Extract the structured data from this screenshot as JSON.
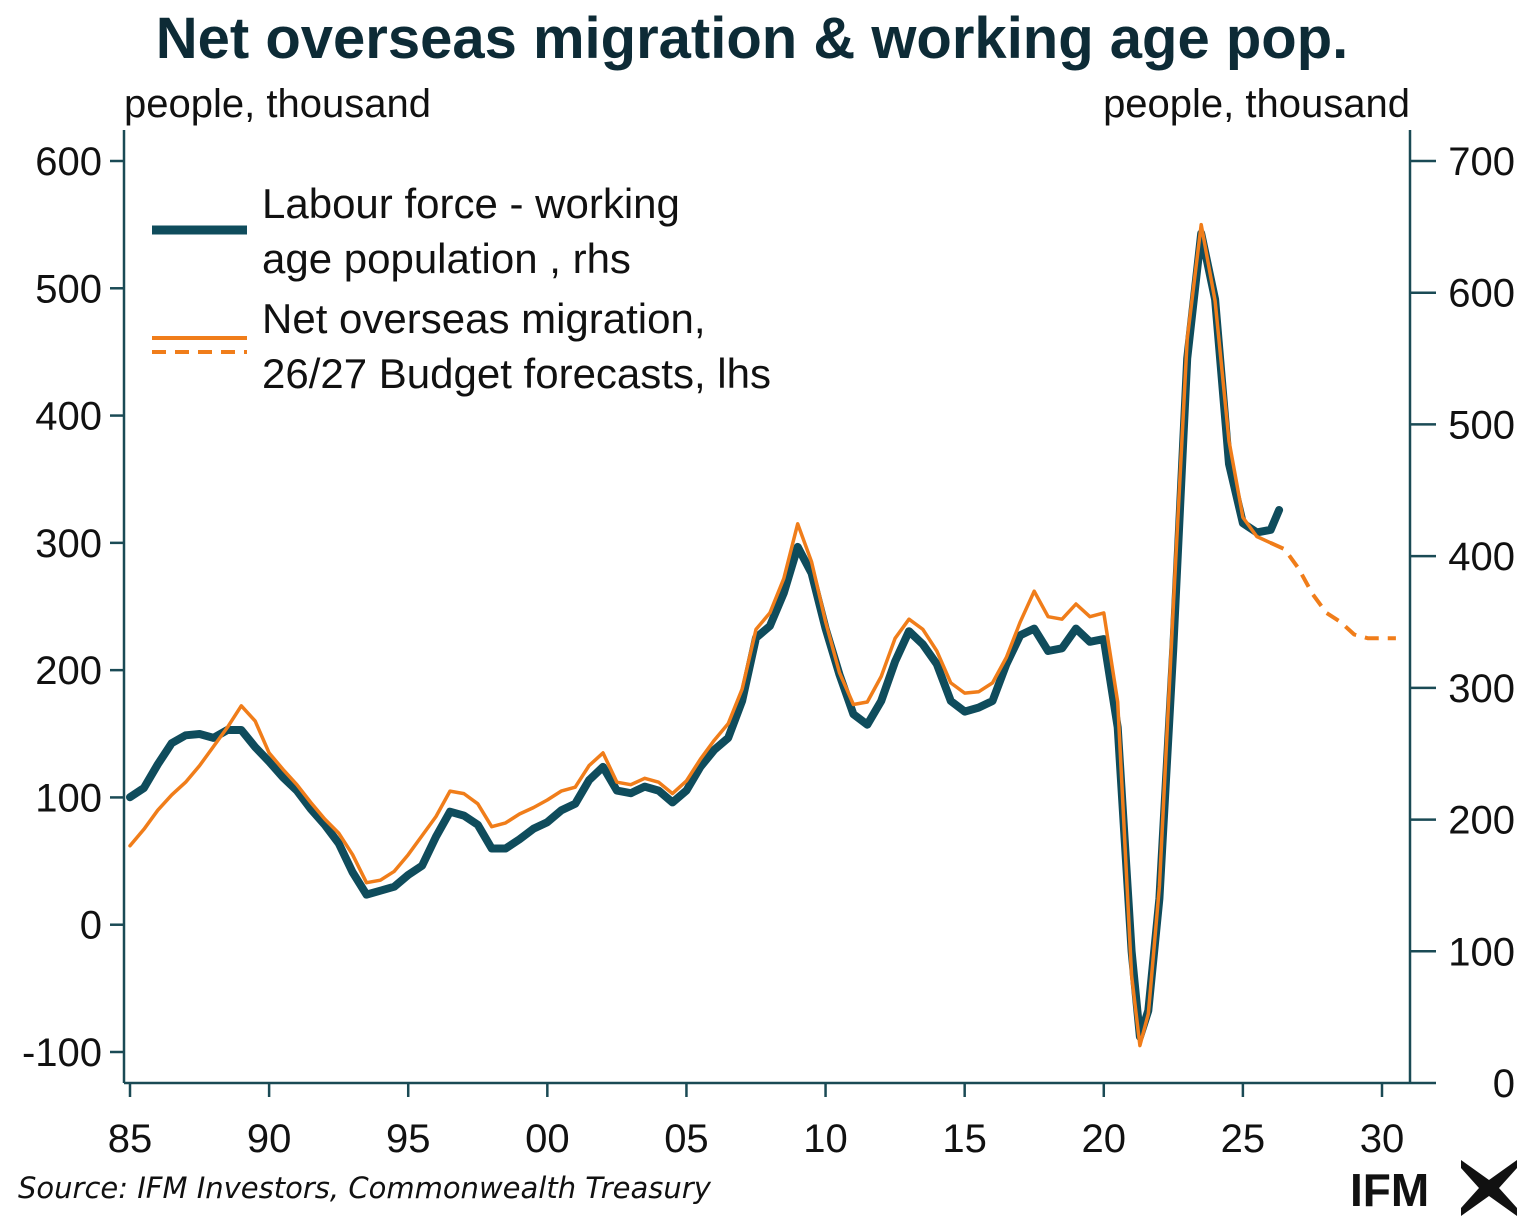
{
  "title": "Net overseas migration & working age pop.",
  "left_unit": "people, thousand",
  "right_unit": "people, thousand",
  "source": "Source: IFM Investors, Commonwealth Treasury",
  "logo_text": "IFM",
  "colors": {
    "labour": "#0f4c5c",
    "nom": "#f07d1a",
    "axis": "#1a4a55",
    "title": "#0d2b36"
  },
  "legend": {
    "labour_line1": "Labour force - working",
    "labour_line2": "age population , rhs",
    "nom_line1": "Net overseas migration,",
    "nom_line2": "26/27 Budget forecasts, lhs"
  },
  "chart_data": {
    "type": "line",
    "title": "Net overseas migration & working age pop.",
    "x_axis": {
      "min": 1985,
      "max": 2030,
      "ticks": [
        1985,
        1990,
        1995,
        2000,
        2005,
        2010,
        2015,
        2020,
        2025,
        2030
      ],
      "tick_labels": [
        "85",
        "90",
        "95",
        "00",
        "05",
        "10",
        "15",
        "20",
        "25",
        "30"
      ]
    },
    "y_left": {
      "label": "people, thousand",
      "min": -100,
      "max": 600,
      "ticks": [
        -100,
        0,
        100,
        200,
        300,
        400,
        500,
        600
      ]
    },
    "y_right": {
      "label": "people, thousand",
      "min": 0,
      "max": 700,
      "ticks": [
        0,
        100,
        200,
        300,
        400,
        500,
        600,
        700
      ]
    },
    "grid": false,
    "legend_position": "top-left",
    "series": [
      {
        "name": "Labour force - working age population , rhs",
        "axis": "right",
        "style": "solid-thick",
        "points": [
          [
            1985.0,
            217
          ],
          [
            1985.5,
            224
          ],
          [
            1986.0,
            242
          ],
          [
            1986.5,
            258
          ],
          [
            1987.0,
            264
          ],
          [
            1987.5,
            265
          ],
          [
            1988.0,
            262
          ],
          [
            1988.5,
            268
          ],
          [
            1989.0,
            268
          ],
          [
            1989.5,
            255
          ],
          [
            1990.0,
            244
          ],
          [
            1990.5,
            232
          ],
          [
            1991.0,
            222
          ],
          [
            1991.5,
            208
          ],
          [
            1992.0,
            196
          ],
          [
            1992.5,
            182
          ],
          [
            1993.0,
            160
          ],
          [
            1993.5,
            143
          ],
          [
            1994.0,
            146
          ],
          [
            1994.5,
            149
          ],
          [
            1995.0,
            158
          ],
          [
            1995.5,
            165
          ],
          [
            1996.0,
            187
          ],
          [
            1996.5,
            206
          ],
          [
            1997.0,
            203
          ],
          [
            1997.5,
            196
          ],
          [
            1998.0,
            178
          ],
          [
            1998.5,
            178
          ],
          [
            1999.0,
            185
          ],
          [
            1999.5,
            193
          ],
          [
            2000.0,
            198
          ],
          [
            2000.5,
            207
          ],
          [
            2001.0,
            212
          ],
          [
            2001.5,
            230
          ],
          [
            2002.0,
            240
          ],
          [
            2002.5,
            222
          ],
          [
            2003.0,
            220
          ],
          [
            2003.5,
            225
          ],
          [
            2004.0,
            222
          ],
          [
            2004.5,
            213
          ],
          [
            2005.0,
            222
          ],
          [
            2005.5,
            240
          ],
          [
            2006.0,
            253
          ],
          [
            2006.5,
            262
          ],
          [
            2007.0,
            290
          ],
          [
            2007.5,
            338
          ],
          [
            2008.0,
            347
          ],
          [
            2008.5,
            372
          ],
          [
            2009.0,
            407
          ],
          [
            2009.5,
            387
          ],
          [
            2010.0,
            345
          ],
          [
            2010.5,
            310
          ],
          [
            2011.0,
            280
          ],
          [
            2011.5,
            272
          ],
          [
            2012.0,
            290
          ],
          [
            2012.5,
            320
          ],
          [
            2013.0,
            343
          ],
          [
            2013.5,
            333
          ],
          [
            2014.0,
            318
          ],
          [
            2014.5,
            290
          ],
          [
            2015.0,
            282
          ],
          [
            2015.5,
            285
          ],
          [
            2016.0,
            290
          ],
          [
            2016.5,
            318
          ],
          [
            2017.0,
            340
          ],
          [
            2017.5,
            345
          ],
          [
            2018.0,
            328
          ],
          [
            2018.5,
            330
          ],
          [
            2019.0,
            345
          ],
          [
            2019.5,
            335
          ],
          [
            2020.0,
            337
          ],
          [
            2020.5,
            270
          ],
          [
            2021.0,
            100
          ],
          [
            2021.3,
            35
          ],
          [
            2021.6,
            55
          ],
          [
            2022.0,
            140
          ],
          [
            2022.5,
            330
          ],
          [
            2023.0,
            550
          ],
          [
            2023.5,
            645
          ],
          [
            2024.0,
            595
          ],
          [
            2024.5,
            470
          ],
          [
            2025.0,
            425
          ],
          [
            2025.5,
            418
          ],
          [
            2026.0,
            420
          ],
          [
            2026.3,
            435
          ]
        ]
      },
      {
        "name": "Net overseas migration, 26/27 Budget forecasts, lhs",
        "axis": "left",
        "style": "solid-thin",
        "points": [
          [
            1985.0,
            62
          ],
          [
            1985.5,
            75
          ],
          [
            1986.0,
            90
          ],
          [
            1986.5,
            102
          ],
          [
            1987.0,
            112
          ],
          [
            1987.5,
            125
          ],
          [
            1988.0,
            140
          ],
          [
            1988.5,
            155
          ],
          [
            1989.0,
            172
          ],
          [
            1989.5,
            160
          ],
          [
            1990.0,
            135
          ],
          [
            1990.5,
            122
          ],
          [
            1991.0,
            110
          ],
          [
            1991.5,
            96
          ],
          [
            1992.0,
            83
          ],
          [
            1992.5,
            72
          ],
          [
            1993.0,
            55
          ],
          [
            1993.5,
            33
          ],
          [
            1994.0,
            35
          ],
          [
            1994.5,
            42
          ],
          [
            1995.0,
            55
          ],
          [
            1995.5,
            70
          ],
          [
            1996.0,
            85
          ],
          [
            1996.5,
            105
          ],
          [
            1997.0,
            103
          ],
          [
            1997.5,
            95
          ],
          [
            1998.0,
            77
          ],
          [
            1998.5,
            80
          ],
          [
            1999.0,
            87
          ],
          [
            1999.5,
            92
          ],
          [
            2000.0,
            98
          ],
          [
            2000.5,
            105
          ],
          [
            2001.0,
            108
          ],
          [
            2001.5,
            125
          ],
          [
            2002.0,
            135
          ],
          [
            2002.5,
            112
          ],
          [
            2003.0,
            110
          ],
          [
            2003.5,
            115
          ],
          [
            2004.0,
            112
          ],
          [
            2004.5,
            103
          ],
          [
            2005.0,
            113
          ],
          [
            2005.5,
            130
          ],
          [
            2006.0,
            145
          ],
          [
            2006.5,
            158
          ],
          [
            2007.0,
            185
          ],
          [
            2007.5,
            232
          ],
          [
            2008.0,
            245
          ],
          [
            2008.5,
            272
          ],
          [
            2009.0,
            315
          ],
          [
            2009.5,
            285
          ],
          [
            2010.0,
            238
          ],
          [
            2010.5,
            198
          ],
          [
            2011.0,
            173
          ],
          [
            2011.5,
            175
          ],
          [
            2012.0,
            195
          ],
          [
            2012.5,
            225
          ],
          [
            2013.0,
            240
          ],
          [
            2013.5,
            232
          ],
          [
            2014.0,
            215
          ],
          [
            2014.5,
            190
          ],
          [
            2015.0,
            182
          ],
          [
            2015.5,
            183
          ],
          [
            2016.0,
            190
          ],
          [
            2016.5,
            210
          ],
          [
            2017.0,
            238
          ],
          [
            2017.5,
            262
          ],
          [
            2018.0,
            242
          ],
          [
            2018.5,
            240
          ],
          [
            2019.0,
            252
          ],
          [
            2019.5,
            242
          ],
          [
            2020.0,
            245
          ],
          [
            2020.5,
            175
          ],
          [
            2021.0,
            -40
          ],
          [
            2021.3,
            -95
          ],
          [
            2021.6,
            -70
          ],
          [
            2022.0,
            30
          ],
          [
            2022.5,
            250
          ],
          [
            2023.0,
            460
          ],
          [
            2023.5,
            550
          ],
          [
            2024.0,
            490
          ],
          [
            2024.5,
            380
          ],
          [
            2025.0,
            320
          ],
          [
            2025.5,
            305
          ],
          [
            2026.0,
            300
          ]
        ]
      },
      {
        "name": "Net overseas migration, 26/27 Budget forecasts, lhs",
        "axis": "left",
        "style": "dashed",
        "points": [
          [
            2026.0,
            300
          ],
          [
            2026.5,
            295
          ],
          [
            2027.0,
            280
          ],
          [
            2027.5,
            260
          ],
          [
            2028.0,
            245
          ],
          [
            2028.5,
            238
          ],
          [
            2029.0,
            228
          ],
          [
            2029.5,
            225
          ],
          [
            2030.0,
            225
          ],
          [
            2030.5,
            225
          ]
        ]
      }
    ]
  }
}
